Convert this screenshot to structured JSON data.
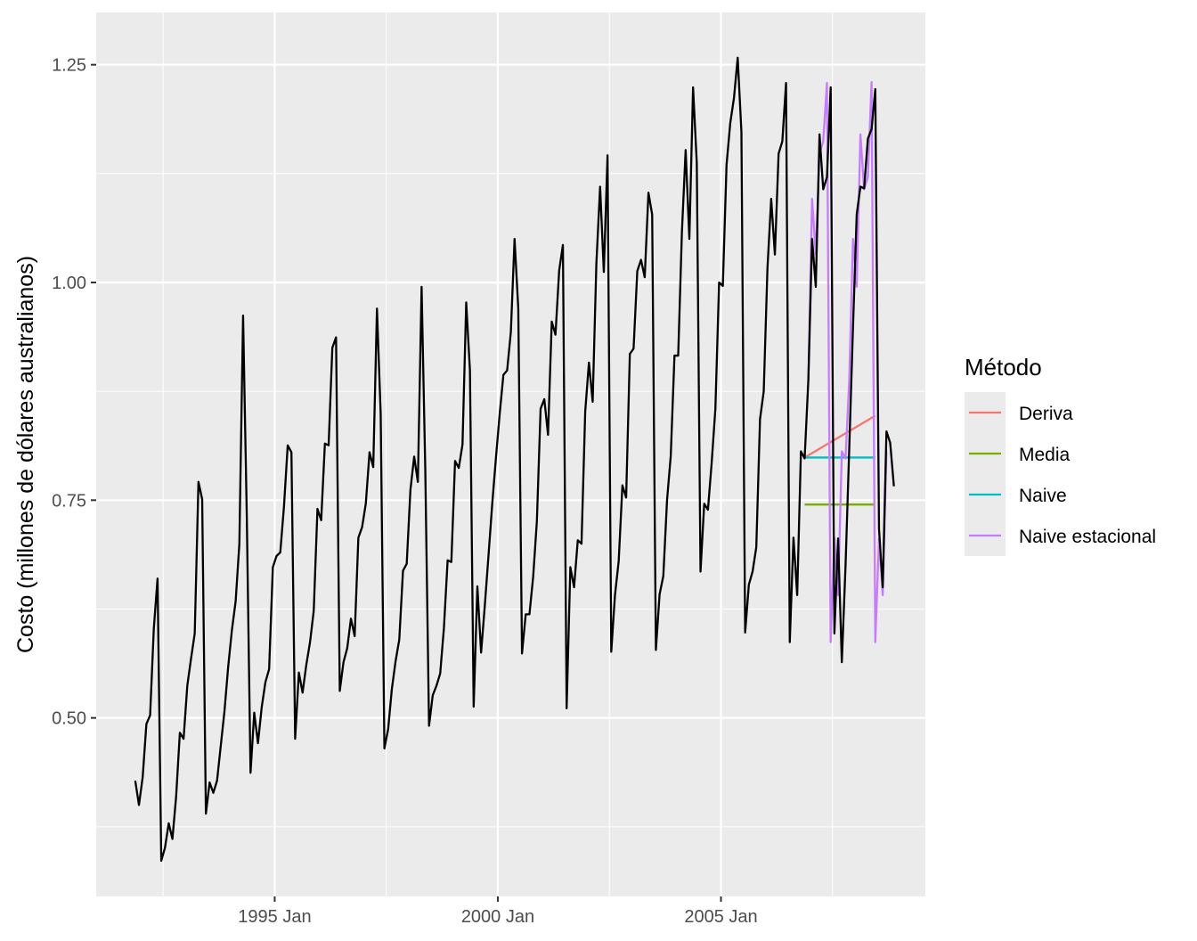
{
  "chart_data": {
    "type": "line",
    "title": "",
    "xlabel": "",
    "ylabel": "Costo (millones de dólares australianos)",
    "x_ticks": [
      {
        "x": 1995.0,
        "label": "1995 Jan"
      },
      {
        "x": 2000.0,
        "label": "2000 Jan"
      },
      {
        "x": 2005.0,
        "label": "2005 Jan"
      }
    ],
    "y_ticks": [
      {
        "y": 0.5,
        "label": "0.50"
      },
      {
        "y": 0.75,
        "label": "0.75"
      },
      {
        "y": 1.0,
        "label": "1.00"
      },
      {
        "y": 1.25,
        "label": "1.25"
      }
    ],
    "xlim": [
      1991.0,
      2009.58
    ],
    "ylim": [
      0.295,
      1.31
    ],
    "grid": true,
    "background": "#EBEBEB",
    "legend": {
      "title": "Método",
      "position": "right"
    },
    "observed": {
      "color": "#000000",
      "start": 1991.875,
      "step": 0.083333,
      "values": [
        0.428,
        0.4,
        0.432,
        0.493,
        0.503,
        0.603,
        0.66,
        0.336,
        0.351,
        0.379,
        0.361,
        0.41,
        0.483,
        0.476,
        0.537,
        0.568,
        0.597,
        0.771,
        0.751,
        0.39,
        0.426,
        0.414,
        0.428,
        0.468,
        0.508,
        0.559,
        0.601,
        0.634,
        0.7,
        0.962,
        0.731,
        0.437,
        0.506,
        0.471,
        0.512,
        0.541,
        0.556,
        0.673,
        0.686,
        0.69,
        0.743,
        0.813,
        0.805,
        0.476,
        0.552,
        0.529,
        0.561,
        0.587,
        0.623,
        0.74,
        0.727,
        0.815,
        0.813,
        0.925,
        0.937,
        0.531,
        0.564,
        0.58,
        0.614,
        0.594,
        0.707,
        0.719,
        0.746,
        0.805,
        0.788,
        0.97,
        0.849,
        0.465,
        0.487,
        0.533,
        0.565,
        0.59,
        0.669,
        0.677,
        0.762,
        0.8,
        0.771,
        0.995,
        0.784,
        0.491,
        0.526,
        0.537,
        0.551,
        0.603,
        0.681,
        0.679,
        0.795,
        0.787,
        0.814,
        0.977,
        0.899,
        0.513,
        0.651,
        0.575,
        0.629,
        0.687,
        0.746,
        0.799,
        0.849,
        0.894,
        0.899,
        0.943,
        1.05,
        0.97,
        0.574,
        0.619,
        0.619,
        0.662,
        0.726,
        0.855,
        0.866,
        0.825,
        0.955,
        0.94,
        1.014,
        1.043,
        0.511,
        0.673,
        0.65,
        0.704,
        0.7,
        0.852,
        0.908,
        0.863,
        1.022,
        1.11,
        1.012,
        1.146,
        0.576,
        0.641,
        0.68,
        0.767,
        0.753,
        0.918,
        0.924,
        1.013,
        1.026,
        1.006,
        1.103,
        1.078,
        0.578,
        0.642,
        0.663,
        0.75,
        0.801,
        0.916,
        0.916,
        1.058,
        1.152,
        1.05,
        1.224,
        1.137,
        0.668,
        0.746,
        0.739,
        0.793,
        0.855,
        1.0,
        0.996,
        1.135,
        1.183,
        1.212,
        1.258,
        1.173,
        0.598,
        0.653,
        0.668,
        0.696,
        0.843,
        0.875,
        1.016,
        1.096,
        1.032,
        1.148,
        1.162,
        1.229,
        0.587,
        0.707,
        0.641,
        0.806,
        0.798,
        0.888,
        1.05,
        0.995,
        1.17,
        1.107,
        1.121,
        1.224,
        0.597,
        0.706,
        0.564,
        0.675,
        0.81,
        0.948,
        1.078,
        1.11,
        1.108,
        1.165,
        1.176,
        1.222,
        0.717,
        0.65,
        0.829,
        0.816,
        0.766
      ]
    },
    "series": [
      {
        "name": "Deriva",
        "color": "#F8766D",
        "x": [
          2006.875,
          2008.458
        ],
        "values": [
          0.799,
          0.847
        ]
      },
      {
        "name": "Media",
        "color": "#7CAE00",
        "x": [
          2006.875,
          2008.458
        ],
        "values": [
          0.745,
          0.745
        ]
      },
      {
        "name": "Naive",
        "color": "#00BFC4",
        "x": [
          2006.875,
          2008.458
        ],
        "values": [
          0.799,
          0.799
        ]
      },
      {
        "name": "Naive estacional",
        "color": "#C77CFF",
        "start": 2006.958,
        "step": 0.083333,
        "values": [
          0.888,
          1.096,
          1.032,
          1.148,
          1.162,
          1.229,
          0.587,
          0.707,
          0.641,
          0.806,
          0.798,
          0.888,
          1.05,
          0.995,
          1.17,
          1.107,
          1.121,
          1.23,
          0.587,
          0.706,
          0.641,
          0.806
        ]
      }
    ]
  }
}
